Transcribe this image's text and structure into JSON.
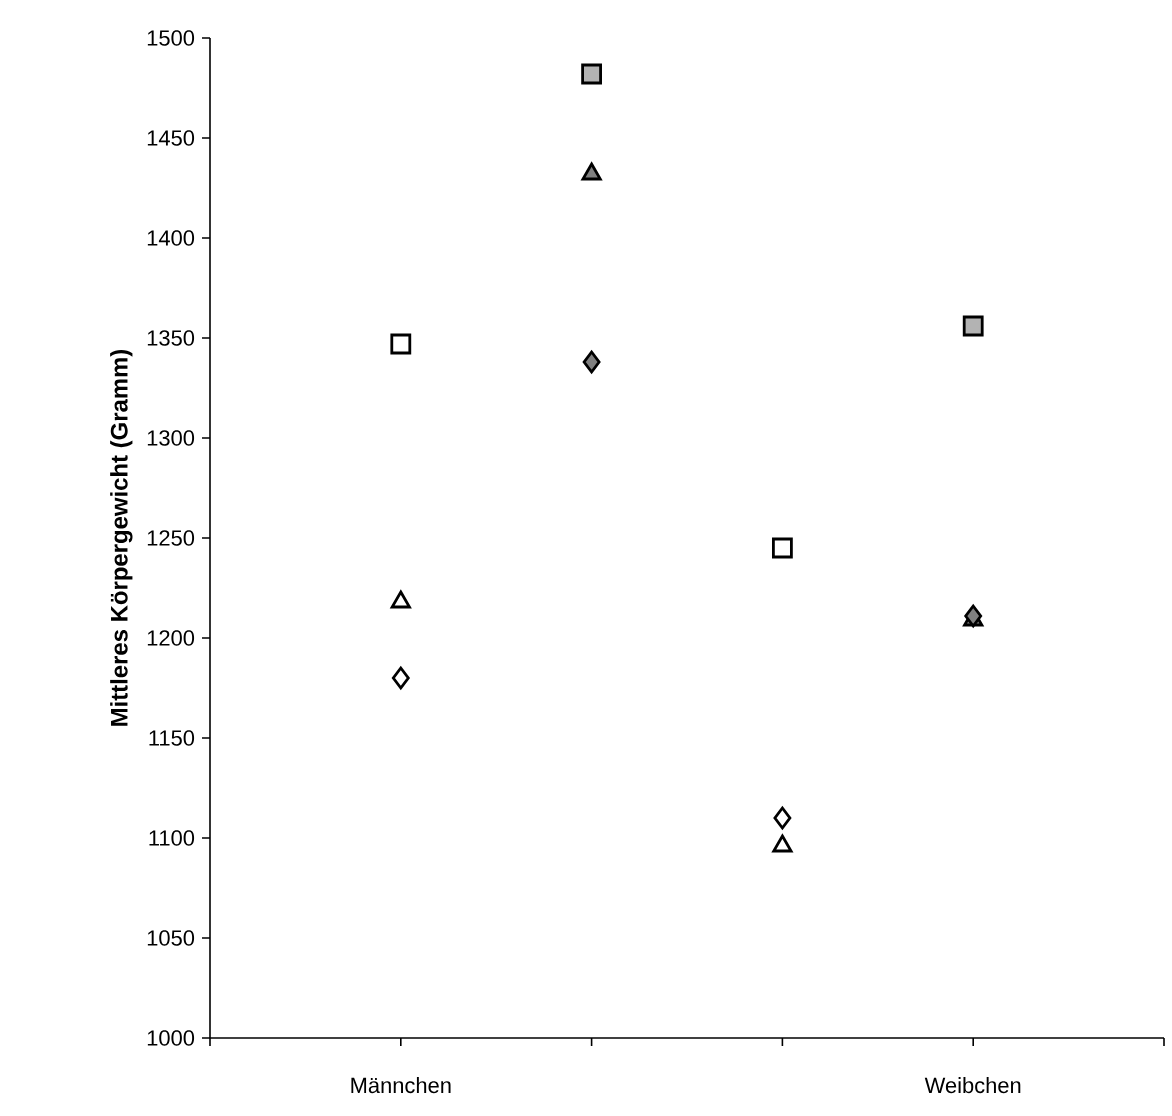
{
  "chart_data": {
    "type": "scatter",
    "ylabel": "Mittleres Körpergewicht (Gramm)",
    "categories": [
      "Männchen",
      null,
      null,
      "Weibchen"
    ],
    "ylim": [
      1000,
      1500
    ],
    "yticks": [
      1000,
      1050,
      1100,
      1150,
      1200,
      1250,
      1300,
      1350,
      1400,
      1450,
      1500
    ],
    "series": [
      {
        "marker": "square",
        "colors": [
          "#ffffff",
          "#b3b3b3",
          "#ffffff",
          "#b3b3b3"
        ],
        "values": [
          1347,
          1482,
          1245,
          1356
        ]
      },
      {
        "marker": "triangle",
        "colors": [
          "#ffffff",
          "#808080",
          "#ffffff",
          "#808080"
        ],
        "values": [
          1218,
          1432,
          1096,
          1209
        ]
      },
      {
        "marker": "diamond",
        "colors": [
          "#ffffff",
          "#808080",
          "#ffffff",
          "#808080"
        ],
        "values": [
          1180,
          1338,
          1110,
          1211
        ]
      }
    ]
  }
}
